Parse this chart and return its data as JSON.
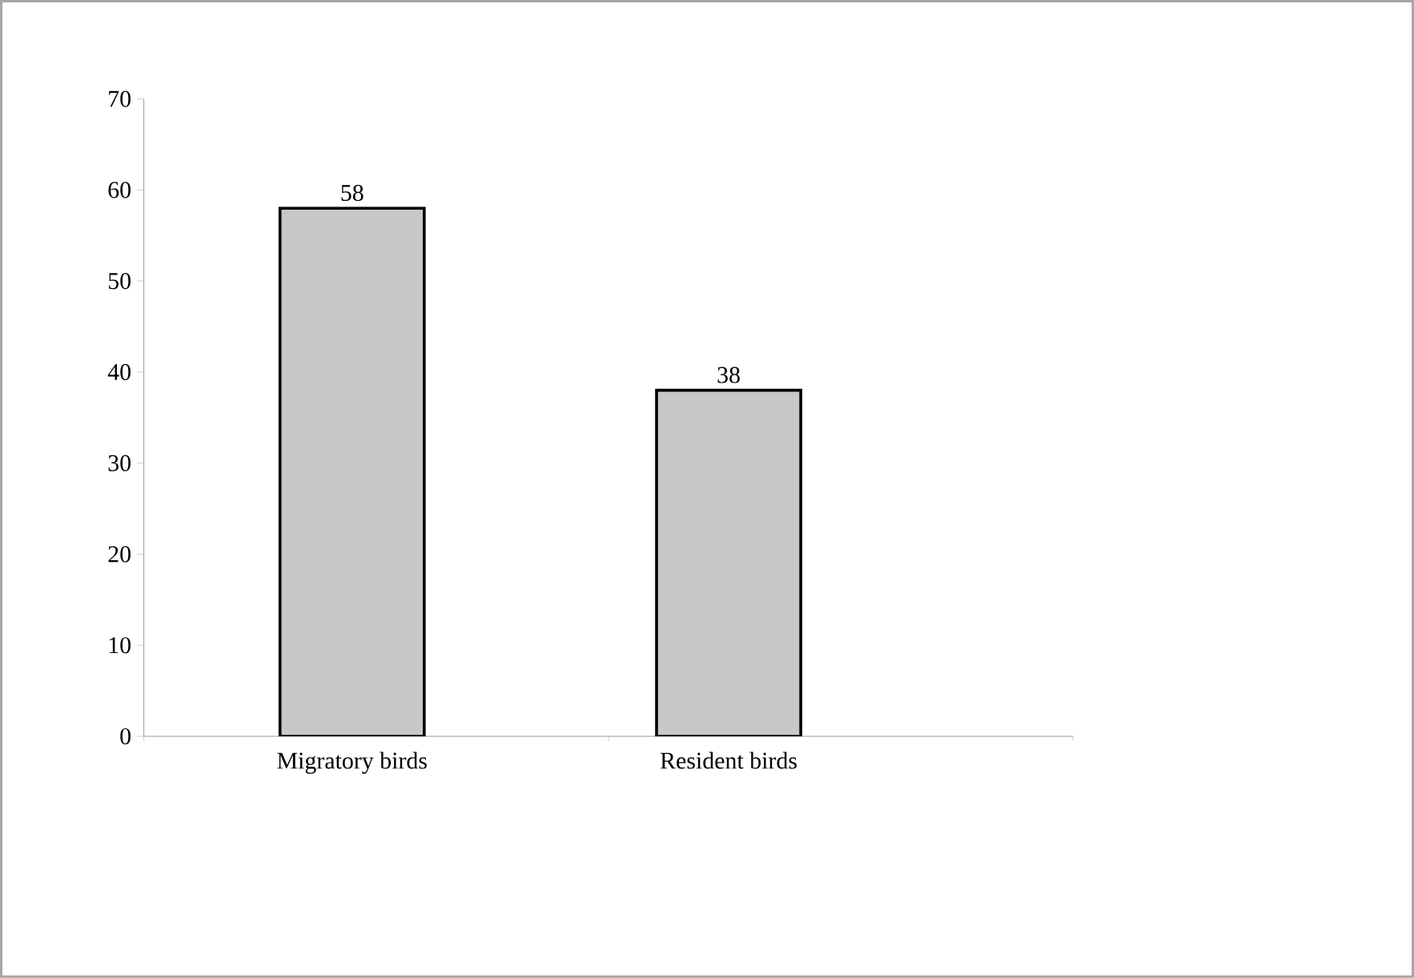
{
  "chart_data": {
    "type": "bar",
    "categories": [
      "Migratory birds",
      "Resident birds"
    ],
    "values": [
      58,
      38
    ],
    "color": "#c8c8c8",
    "ylim": [
      0,
      70
    ],
    "yticks": [
      0,
      10,
      20,
      30,
      40,
      50,
      60,
      70
    ],
    "data_labels": true,
    "grid": false
  }
}
